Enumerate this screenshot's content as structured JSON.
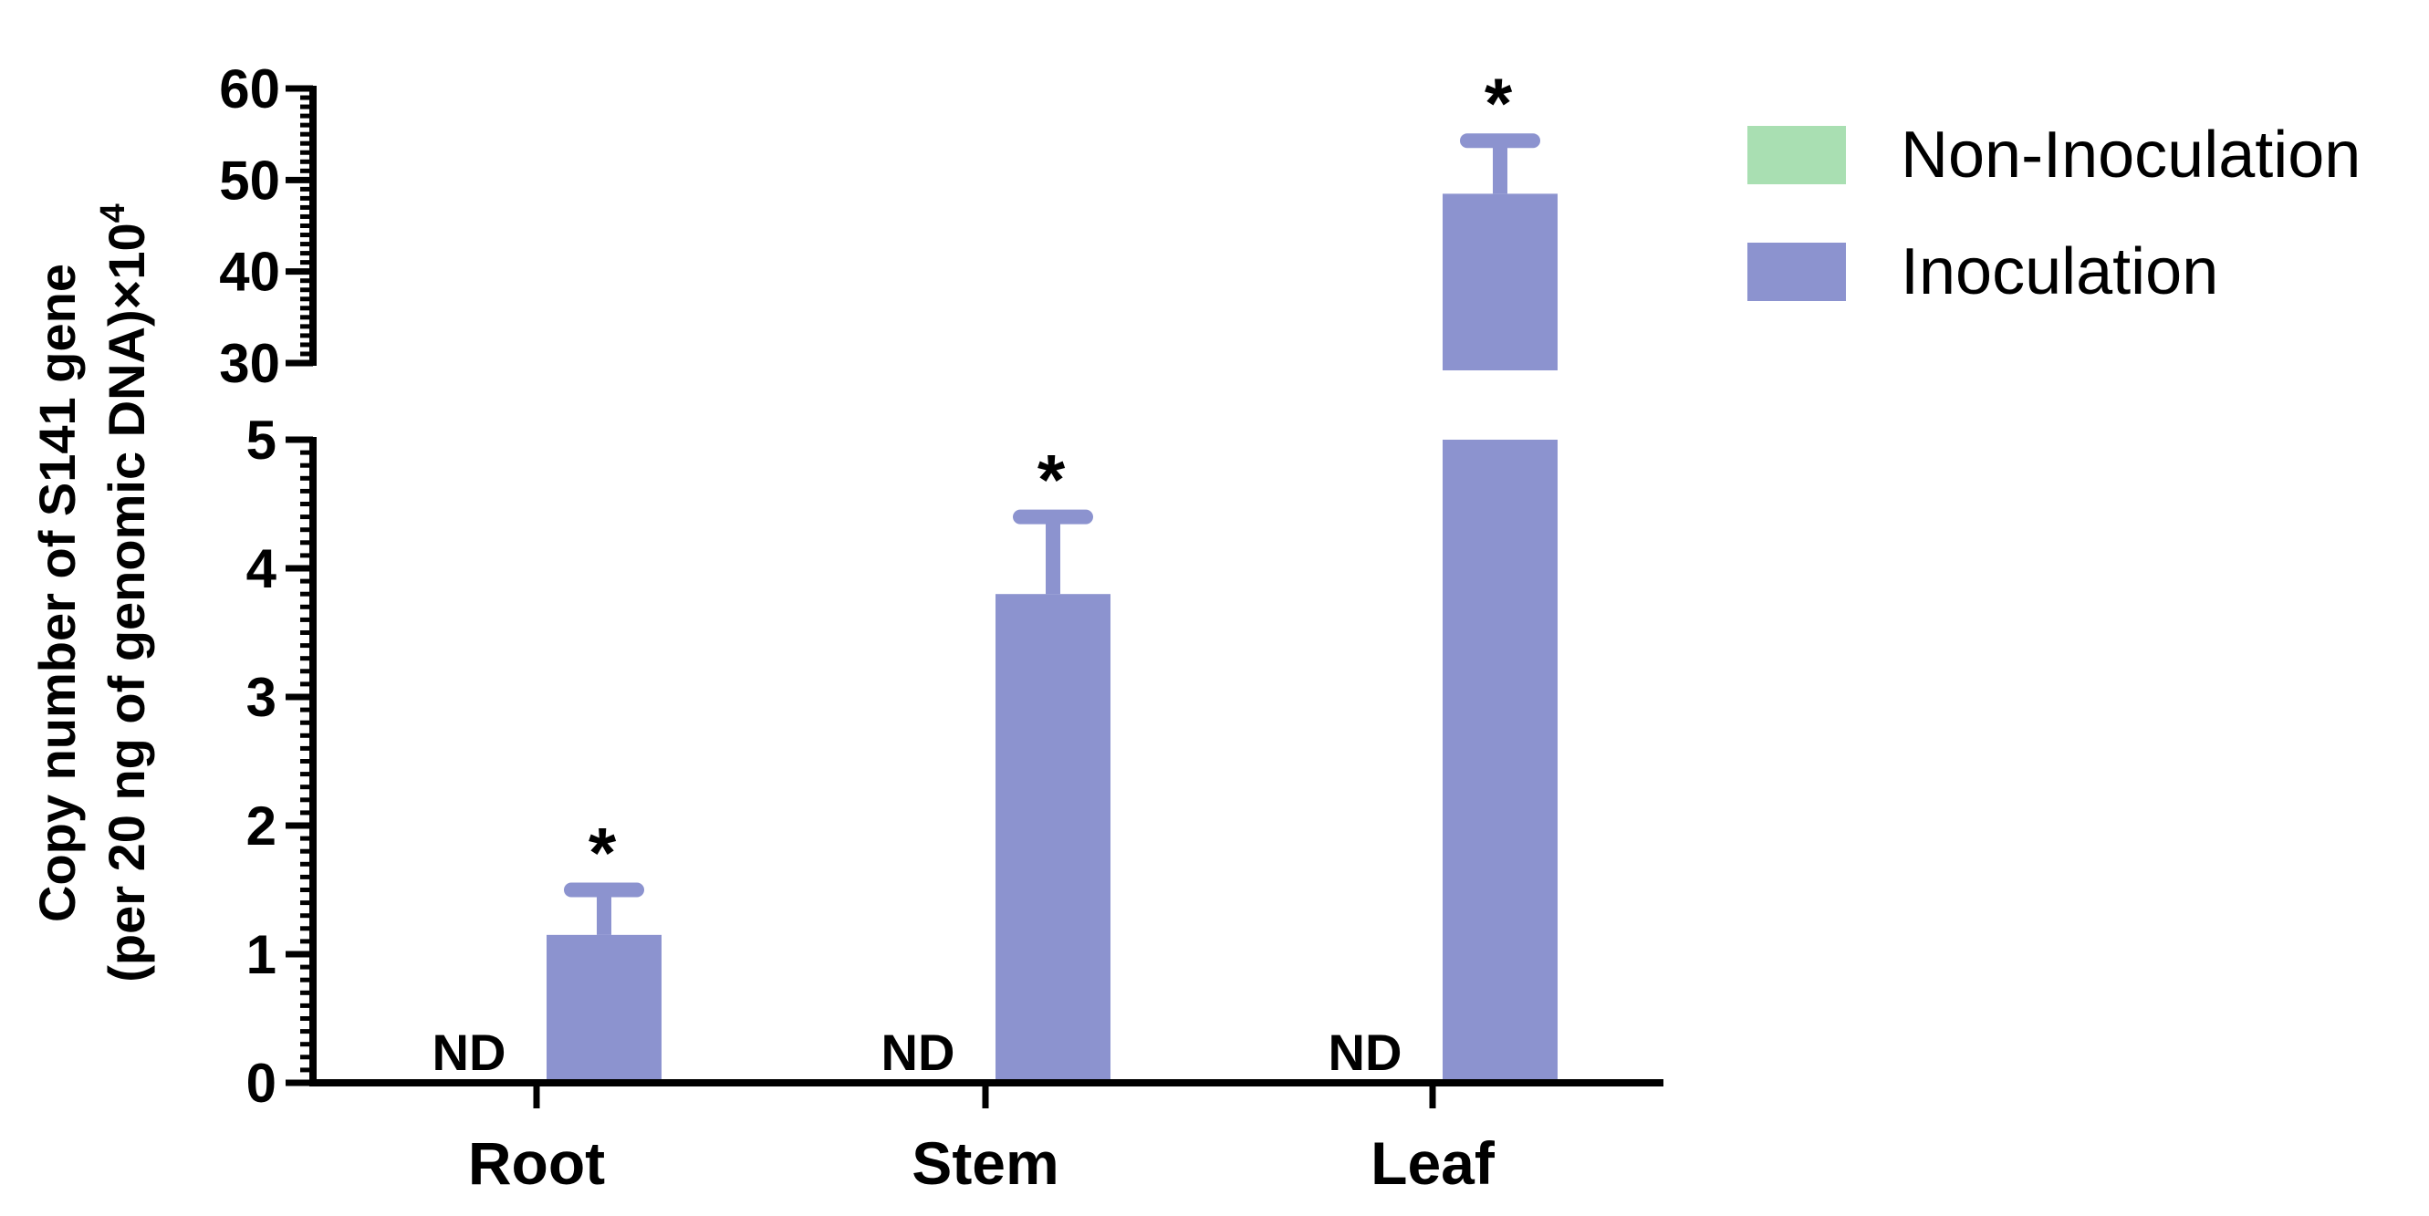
{
  "chart_data": {
    "type": "bar",
    "categories": [
      "Root",
      "Stem",
      "Leaf"
    ],
    "ylabel_line1": "Copy number of S141 gene",
    "ylabel_line2": "(per 20 ng of genomic DNA)×10",
    "ylabel_superscript": "4",
    "y_axis_broken": true,
    "y_lower_range": [
      0,
      5
    ],
    "y_lower_ticks": [
      "0",
      "1",
      "2",
      "3",
      "4",
      "5"
    ],
    "y_upper_range": [
      30,
      60
    ],
    "y_upper_ticks": [
      "30",
      "40",
      "50",
      "60"
    ],
    "series": [
      {
        "name": "Non-Inoculation",
        "color": "#a9dfb2",
        "values": [
          0,
          0,
          0
        ],
        "annotations": [
          "ND",
          "ND",
          "ND"
        ]
      },
      {
        "name": "Inoculation",
        "color": "#8c93cf",
        "values": [
          1.15,
          3.8,
          48.5
        ],
        "error": [
          0.35,
          0.6,
          5.8
        ],
        "significance": [
          "*",
          "*",
          "*"
        ]
      }
    ],
    "legend_position": "top-right",
    "grid": false
  }
}
